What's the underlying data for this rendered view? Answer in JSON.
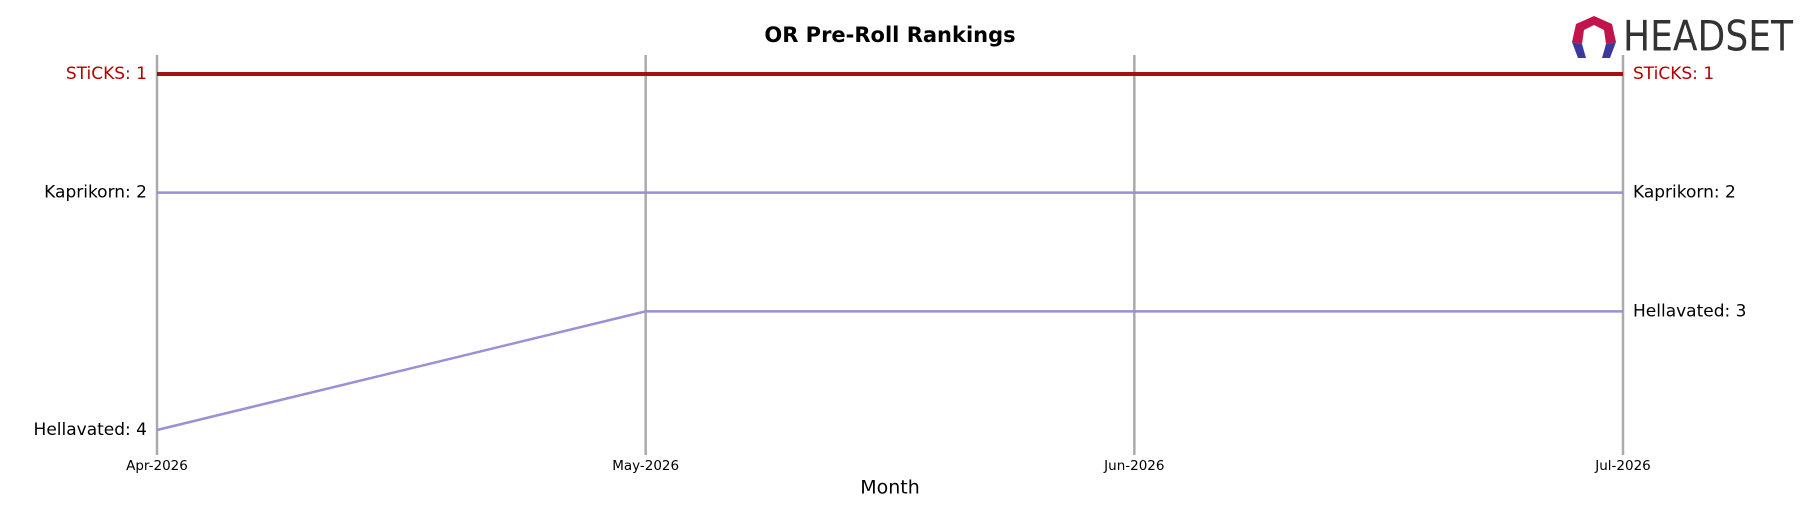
{
  "chart_data": {
    "type": "line",
    "title": "OR Pre-Roll Rankings",
    "xlabel": "Month",
    "categories": [
      "Apr-2026",
      "May-2026",
      "Jun-2026",
      "Jul-2026"
    ],
    "ylim": [
      4,
      1
    ],
    "grid": true,
    "series": [
      {
        "name": "STiCKS",
        "color": "#a50f15",
        "label_color": "#b30000",
        "values": [
          1,
          1,
          1,
          1
        ],
        "value_labels": [
          "STiCKS: 1",
          null,
          null,
          "STiCKS: 1"
        ]
      },
      {
        "name": "Kaprikorn",
        "color": "#9b8fd6",
        "label_color": "#000000",
        "values": [
          2,
          2,
          2,
          2
        ],
        "value_labels": [
          "Kaprikorn: 2",
          null,
          null,
          "Kaprikorn: 2"
        ]
      },
      {
        "name": "Hellavated",
        "color": "#9b8fd6",
        "label_color": "#000000",
        "values": [
          4,
          3,
          3,
          3
        ],
        "value_labels": [
          "Hellavated: 4",
          null,
          null,
          "Hellavated: 3"
        ]
      }
    ]
  },
  "logo": {
    "text": "HEADSET"
  }
}
